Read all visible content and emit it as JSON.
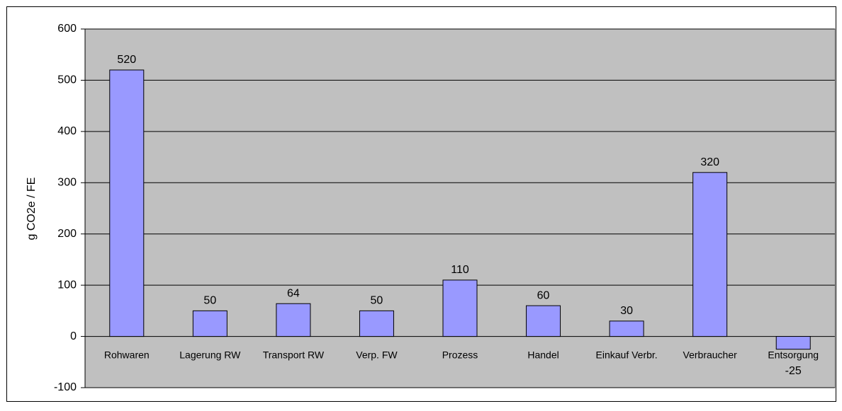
{
  "chart_data": {
    "type": "bar",
    "y_label": "g CO2e / FE",
    "categories": [
      "Rohwaren",
      "Lagerung RW",
      "Transport RW",
      "Verp. FW",
      "Prozess",
      "Handel",
      "Einkauf Verbr.",
      "Verbraucher",
      "Entsorgung"
    ],
    "values": [
      520,
      50,
      64,
      50,
      110,
      60,
      30,
      320,
      -25
    ],
    "color": "#9999ff",
    "plot_background": "#c0c0c0",
    "ylim": [
      -100,
      600
    ],
    "yticks": [
      -100,
      0,
      100,
      200,
      300,
      400,
      500,
      600
    ],
    "grid": true
  }
}
